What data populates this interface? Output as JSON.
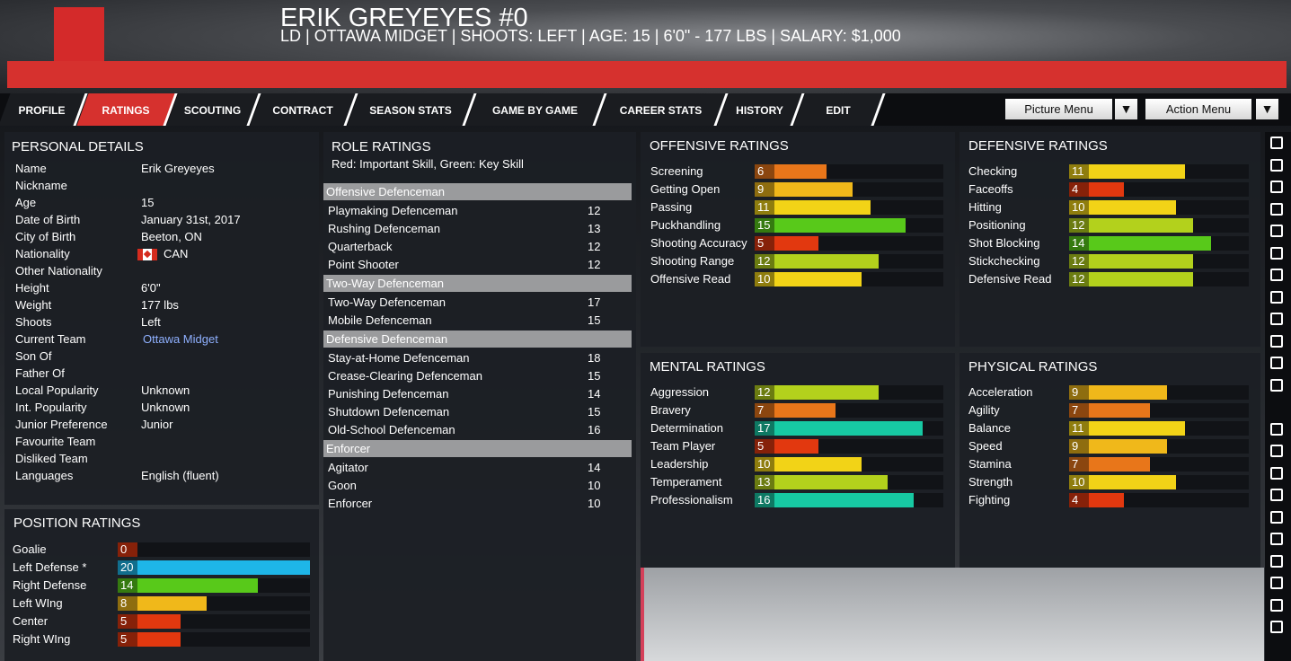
{
  "header": {
    "name": "ERIK GREYEYES #0",
    "info": "LD | OTTAWA MIDGET | SHOOTS: LEFT | AGE: 15 | 6'0\" - 177 LBS | SALARY: $1,000"
  },
  "tabs": [
    "PROFILE",
    "RATINGS",
    "SCOUTING",
    "CONTRACT",
    "SEASON STATS",
    "GAME BY GAME",
    "CAREER STATS",
    "HISTORY",
    "EDIT"
  ],
  "active_tab": 1,
  "menus": [
    "Picture Menu",
    "Action Menu"
  ],
  "personal_details": {
    "title": "PERSONAL DETAILS",
    "rows": [
      {
        "label": "Name",
        "value": "Erik Greyeyes"
      },
      {
        "label": "Nickname"
      },
      {
        "label": "Age",
        "value": "15"
      },
      {
        "label": "Date of Birth",
        "value": "January 31st, 2017"
      },
      {
        "label": "City of Birth",
        "value": "Beeton, ON"
      },
      {
        "label": "Nationality",
        "value": "CAN"
      },
      {
        "label": "Other Nationality"
      },
      {
        "label": "Height",
        "value": "6'0\""
      },
      {
        "label": "Weight",
        "value": "177 lbs"
      },
      {
        "label": "Shoots",
        "value": "Left"
      },
      {
        "label": "Current Team",
        "value": "Ottawa Midget"
      },
      {
        "label": "Son Of"
      },
      {
        "label": "Father Of"
      },
      {
        "label": "Local Popularity",
        "value": "Unknown"
      },
      {
        "label": "Int. Popularity",
        "value": "Unknown"
      },
      {
        "label": "Junior Preference",
        "value": "Junior"
      },
      {
        "label": "Favourite Team"
      },
      {
        "label": "Disliked Team"
      },
      {
        "label": "Languages",
        "value": "English (fluent)"
      }
    ]
  },
  "position_ratings": {
    "title": "POSITION RATINGS",
    "items": [
      {
        "name": "Goalie",
        "value": 0
      },
      {
        "name": "Left Defense *",
        "value": 20
      },
      {
        "name": "Right Defense",
        "value": 14
      },
      {
        "name": "Left WIng",
        "value": 8
      },
      {
        "name": "Center",
        "value": 5
      },
      {
        "name": "Right WIng",
        "value": 5
      }
    ]
  },
  "role_ratings": {
    "title": "ROLE RATINGS",
    "subtitle": "Red: Important Skill, Green: Key Skill",
    "groups": [
      {
        "name": "Offensive Defenceman",
        "roles": [
          {
            "name": "Playmaking Defenceman",
            "value": 12
          },
          {
            "name": "Rushing Defenceman",
            "value": 13
          },
          {
            "name": "Quarterback",
            "value": 12
          },
          {
            "name": "Point Shooter",
            "value": 12
          }
        ]
      },
      {
        "name": "Two-Way Defenceman",
        "roles": [
          {
            "name": "Two-Way Defenceman",
            "value": 17
          },
          {
            "name": "Mobile Defenceman",
            "value": 15
          }
        ]
      },
      {
        "name": "Defensive Defenceman",
        "roles": [
          {
            "name": "Stay-at-Home Defenceman",
            "value": 18
          },
          {
            "name": "Crease-Clearing Defenceman",
            "value": 15
          },
          {
            "name": "Punishing Defenceman",
            "value": 14
          },
          {
            "name": "Shutdown Defenceman",
            "value": 15
          },
          {
            "name": "Old-School Defenceman",
            "value": 16
          }
        ]
      },
      {
        "name": "Enforcer",
        "roles": [
          {
            "name": "Agitator",
            "value": 14
          },
          {
            "name": "Goon",
            "value": 10
          },
          {
            "name": "Enforcer",
            "value": 10
          }
        ]
      }
    ]
  },
  "offensive_ratings": {
    "title": "OFFENSIVE RATINGS",
    "items": [
      {
        "name": "Screening",
        "value": 6
      },
      {
        "name": "Getting Open",
        "value": 9
      },
      {
        "name": "Passing",
        "value": 11
      },
      {
        "name": "Puckhandling",
        "value": 15
      },
      {
        "name": "Shooting Accuracy",
        "value": 5
      },
      {
        "name": "Shooting Range",
        "value": 12
      },
      {
        "name": "Offensive Read",
        "value": 10
      }
    ]
  },
  "defensive_ratings": {
    "title": "DEFENSIVE RATINGS",
    "items": [
      {
        "name": "Checking",
        "value": 11
      },
      {
        "name": "Faceoffs",
        "value": 4
      },
      {
        "name": "Hitting",
        "value": 10
      },
      {
        "name": "Positioning",
        "value": 12
      },
      {
        "name": "Shot Blocking",
        "value": 14
      },
      {
        "name": "Stickchecking",
        "value": 12
      },
      {
        "name": "Defensive Read",
        "value": 12
      }
    ]
  },
  "mental_ratings": {
    "title": "MENTAL RATINGS",
    "items": [
      {
        "name": "Aggression",
        "value": 12
      },
      {
        "name": "Bravery",
        "value": 7
      },
      {
        "name": "Determination",
        "value": 17
      },
      {
        "name": "Team Player",
        "value": 5
      },
      {
        "name": "Leadership",
        "value": 10
      },
      {
        "name": "Temperament",
        "value": 13
      },
      {
        "name": "Professionalism",
        "value": 16
      }
    ]
  },
  "physical_ratings": {
    "title": "PHYSICAL RATINGS",
    "items": [
      {
        "name": "Acceleration",
        "value": 9
      },
      {
        "name": "Agility",
        "value": 7
      },
      {
        "name": "Balance",
        "value": 11
      },
      {
        "name": "Speed",
        "value": 9
      },
      {
        "name": "Stamina",
        "value": 7
      },
      {
        "name": "Strength",
        "value": 10
      },
      {
        "name": "Fighting",
        "value": 4
      }
    ]
  }
}
